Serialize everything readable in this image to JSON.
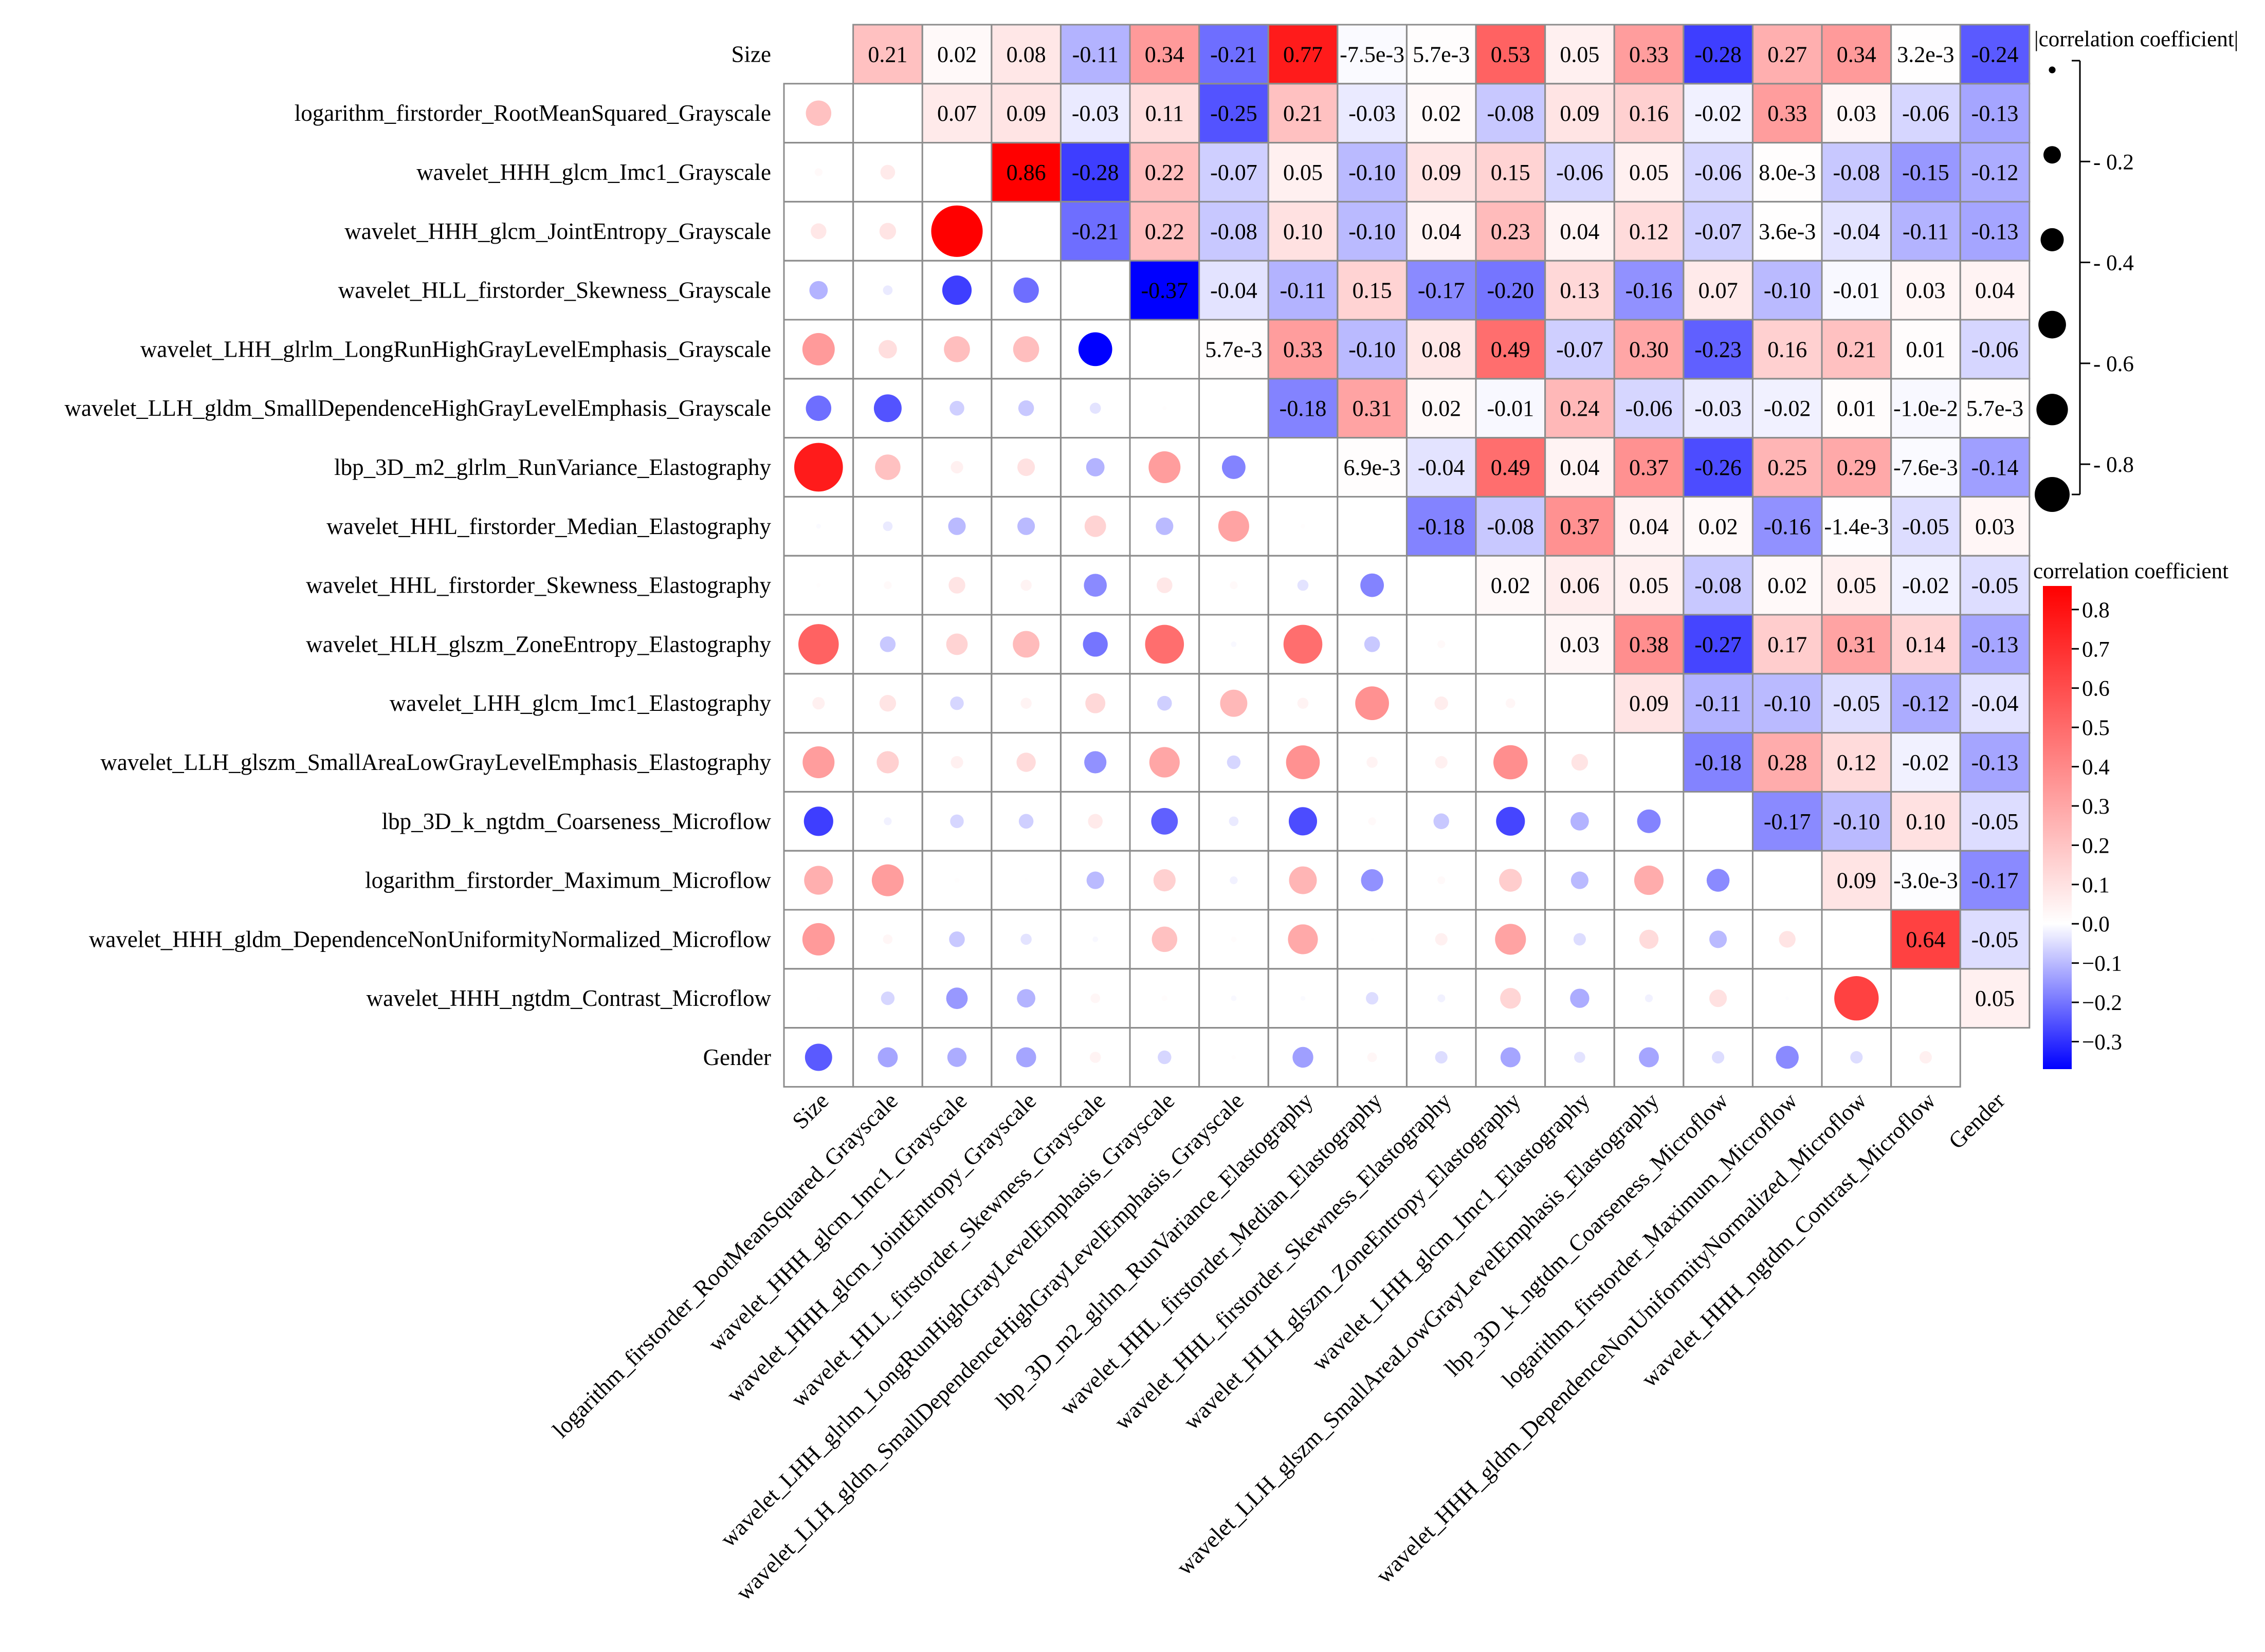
{
  "chart_data": {
    "type": "heatmap",
    "title": "",
    "variables": [
      "Size",
      "logarithm_firstorder_RootMeanSquared_Grayscale",
      "wavelet_HHH_glcm_Imc1_Grayscale",
      "wavelet_HHH_glcm_JointEntropy_Grayscale",
      "wavelet_HLL_firstorder_Skewness_Grayscale",
      "wavelet_LHH_glrlm_LongRunHighGrayLevelEmphasis_Grayscale",
      "wavelet_LLH_gldm_SmallDependenceHighGrayLevelEmphasis_Grayscale",
      "lbp_3D_m2_glrlm_RunVariance_Elastography",
      "wavelet_HHL_firstorder_Median_Elastography",
      "wavelet_HHL_firstorder_Skewness_Elastography",
      "wavelet_HLH_glszm_ZoneEntropy_Elastography",
      "wavelet_LHH_glcm_Imc1_Elastography",
      "wavelet_LLH_glszm_SmallAreaLowGrayLevelEmphasis_Elastography",
      "lbp_3D_k_ngtdm_Coarseness_Microflow",
      "logarithm_firstorder_Maximum_Microflow",
      "wavelet_HHH_gldm_DependenceNonUniformityNormalized_Microflow",
      "wavelet_HHH_ngtdm_Contrast_Microflow",
      "Gender"
    ],
    "upper_labels": [
      [
        "0.21",
        "0.02",
        "0.08",
        "-0.11",
        "0.34",
        "-0.21",
        "0.77",
        "-7.5e-3",
        "5.7e-3",
        "0.53",
        "0.05",
        "0.33",
        "-0.28",
        "0.27",
        "0.34",
        "3.2e-3",
        "-0.24"
      ],
      [
        "0.07",
        "0.09",
        "-0.03",
        "0.11",
        "-0.25",
        "0.21",
        "-0.03",
        "0.02",
        "-0.08",
        "0.09",
        "0.16",
        "-0.02",
        "0.33",
        "0.03",
        "-0.06",
        "-0.13"
      ],
      [
        "0.86",
        "-0.28",
        "0.22",
        "-0.07",
        "0.05",
        "-0.10",
        "0.09",
        "0.15",
        "-0.06",
        "0.05",
        "-0.06",
        "8.0e-3",
        "-0.08",
        "-0.15",
        "-0.12"
      ],
      [
        "-0.21",
        "0.22",
        "-0.08",
        "0.10",
        "-0.10",
        "0.04",
        "0.23",
        "0.04",
        "0.12",
        "-0.07",
        "3.6e-3",
        "-0.04",
        "-0.11",
        "-0.13"
      ],
      [
        "-0.37",
        "-0.04",
        "-0.11",
        "0.15",
        "-0.17",
        "-0.20",
        "0.13",
        "-0.16",
        "0.07",
        "-0.10",
        "-0.01",
        "0.03",
        "0.04"
      ],
      [
        "5.7e-3",
        "0.33",
        "-0.10",
        "0.08",
        "0.49",
        "-0.07",
        "0.30",
        "-0.23",
        "0.16",
        "0.21",
        "0.01",
        "-0.06"
      ],
      [
        "-0.18",
        "0.31",
        "0.02",
        "-0.01",
        "0.24",
        "-0.06",
        "-0.03",
        "-0.02",
        "0.01",
        "-1.0e-2",
        "5.7e-3"
      ],
      [
        "6.9e-3",
        "-0.04",
        "0.49",
        "0.04",
        "0.37",
        "-0.26",
        "0.25",
        "0.29",
        "-7.6e-3",
        "-0.14"
      ],
      [
        "-0.18",
        "-0.08",
        "0.37",
        "0.04",
        "0.02",
        "-0.16",
        "-1.4e-3",
        "-0.05",
        "0.03"
      ],
      [
        "0.02",
        "0.06",
        "0.05",
        "-0.08",
        "0.02",
        "0.05",
        "-0.02",
        "-0.05"
      ],
      [
        "0.03",
        "0.38",
        "-0.27",
        "0.17",
        "0.31",
        "0.14",
        "-0.13"
      ],
      [
        "0.09",
        "-0.11",
        "-0.10",
        "-0.05",
        "-0.12",
        "-0.04"
      ],
      [
        "-0.18",
        "0.28",
        "0.12",
        "-0.02",
        "-0.13"
      ],
      [
        "-0.17",
        "-0.10",
        "0.10",
        "-0.05"
      ],
      [
        "0.09",
        "-3.0e-3",
        "-0.17"
      ],
      [
        "0.64",
        "-0.05"
      ],
      [
        "0.05"
      ]
    ],
    "lower_display": "circles sized by |correlation coefficient| and colored by correlation coefficient (mirror of upper triangle)",
    "size_legend": {
      "title": "|correlation coefficient|",
      "ticks": [
        "0.2",
        "0.4",
        "0.6",
        "0.8"
      ],
      "range": [
        0,
        0.86
      ]
    },
    "color_legend": {
      "title": "correlation coefficient",
      "ticks": [
        "0.8",
        "0.7",
        "0.6",
        "0.5",
        "0.4",
        "0.3",
        "0.2",
        "0.1",
        "0.0",
        "−0.1",
        "−0.2",
        "−0.3"
      ],
      "range": [
        -0.37,
        0.86
      ],
      "low_color": "#0000ff",
      "mid_color": "#ffffff",
      "high_color": "#ff0000"
    }
  }
}
